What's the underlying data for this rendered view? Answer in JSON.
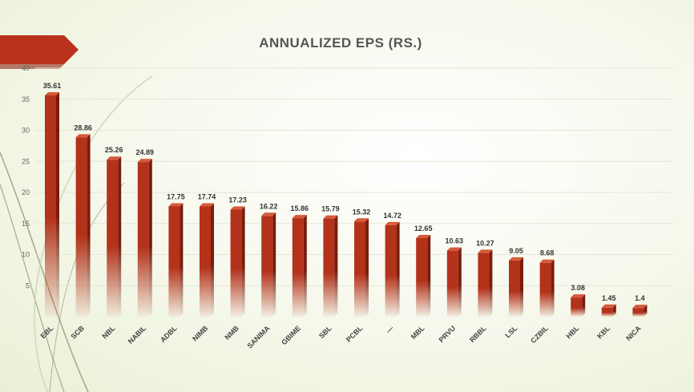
{
  "slide": {
    "title": "ANNUALIZED EPS (RS.)"
  },
  "colors": {
    "bar_front": "#b3321a",
    "bar_side": "#7a1c0c",
    "bar_top": "#d65a3a",
    "banner": "#b8321c",
    "gridline": "#e3e7d3"
  },
  "chart_data": {
    "type": "bar",
    "title": "ANNUALIZED EPS (RS.)",
    "xlabel": "",
    "ylabel": "",
    "ylim": [
      0,
      40
    ],
    "yticks": [
      5,
      10,
      15,
      20,
      25,
      30,
      35,
      40
    ],
    "grid": true,
    "legend": "none",
    "categories": [
      "EBL",
      "SCB",
      "NBL",
      "NABIL",
      "ADBL",
      "NIMB",
      "NMB",
      "SANIMA",
      "GBIME",
      "SBL",
      "PCBL",
      "—",
      "MBL",
      "PRVU",
      "RBBL",
      "LSL",
      "CZBIL",
      "HBL",
      "KBL",
      "NICA"
    ],
    "values": [
      35.61,
      28.86,
      25.26,
      24.89,
      17.75,
      17.74,
      17.23,
      16.22,
      15.86,
      15.79,
      15.32,
      14.72,
      12.65,
      10.63,
      10.27,
      9.05,
      8.68,
      3.08,
      1.45,
      1.4
    ],
    "value_labels": [
      "35.61",
      "28.86",
      "25.26",
      "24.89",
      "17.75",
      "17.74",
      "17.23",
      "16.22",
      "15.86",
      "15.79",
      "15.32",
      "14.72",
      "12.65",
      "10.63",
      "10.27",
      "9.05",
      "8.68",
      "3.08",
      "1.45",
      "1.4"
    ]
  }
}
